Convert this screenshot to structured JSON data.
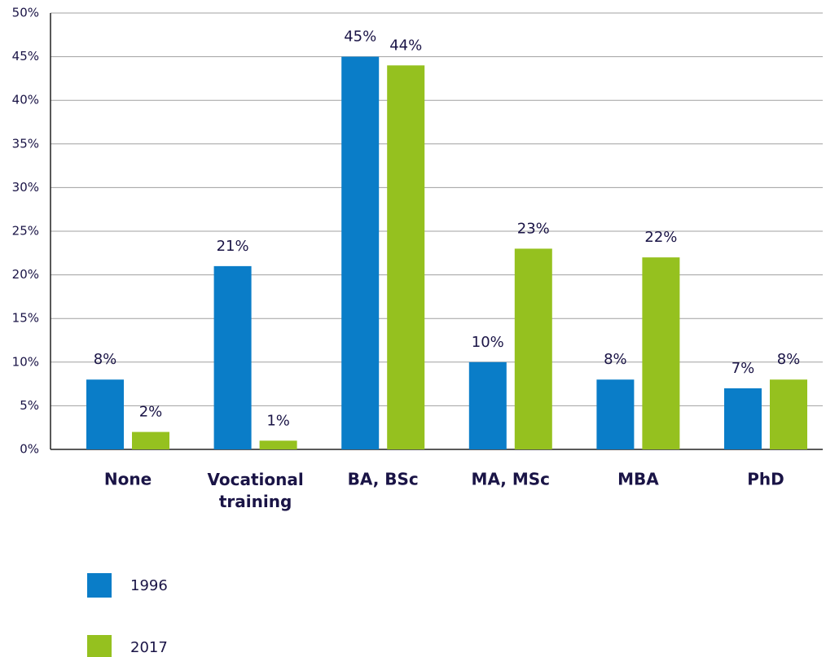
{
  "chart_data": {
    "type": "bar",
    "categories": [
      "None",
      "Vocational\ntraining",
      "BA, BSc",
      "MA, MSc",
      "MBA",
      "PhD"
    ],
    "series": [
      {
        "name": "1996",
        "color": "#0a7dc8",
        "values": [
          8,
          21,
          45,
          10,
          8,
          7
        ],
        "value_labels": [
          "8%",
          "21%",
          "45%",
          "10%",
          "8%",
          "7%"
        ]
      },
      {
        "name": "2017",
        "color": "#95c11f",
        "values": [
          2,
          1,
          44,
          23,
          22,
          8
        ],
        "value_labels": [
          "2%",
          "1%",
          "44%",
          "23%",
          "22%",
          "8%"
        ]
      }
    ],
    "ylim": [
      0,
      50
    ],
    "yticks": [
      {
        "value": 0,
        "label": "0%"
      },
      {
        "value": 5,
        "label": "5%"
      },
      {
        "value": 10,
        "label": "10%"
      },
      {
        "value": 15,
        "label": "15%"
      },
      {
        "value": 20,
        "label": "20%"
      },
      {
        "value": 25,
        "label": "25%"
      },
      {
        "value": 30,
        "label": "30%"
      },
      {
        "value": 35,
        "label": "35%"
      },
      {
        "value": 40,
        "label": "40%"
      },
      {
        "value": 45,
        "label": "45%"
      },
      {
        "value": 50,
        "label": "50%"
      }
    ],
    "grid": true,
    "legend": "bottom-left"
  }
}
